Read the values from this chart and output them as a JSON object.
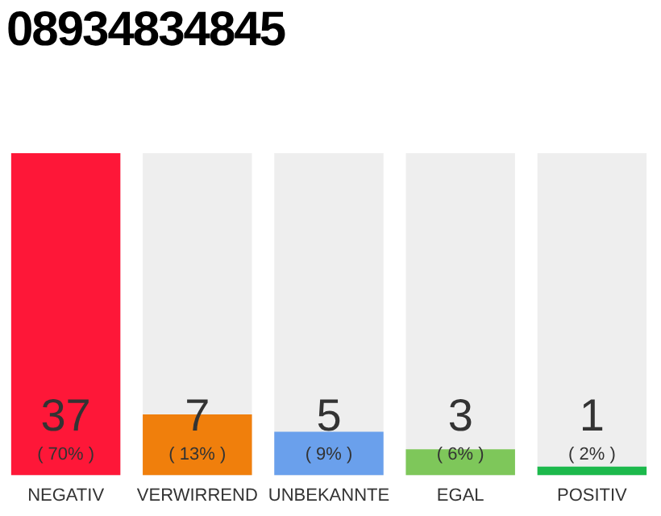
{
  "chart_data": {
    "type": "bar",
    "title": "08934834845",
    "categories": [
      "NEGATIV",
      "VERWIRREND",
      "UNBEKANNTE",
      "EGAL",
      "POSITIV"
    ],
    "values": [
      37,
      7,
      5,
      3,
      1
    ],
    "colors": [
      "#fe1738",
      "#f07f0c",
      "#6aa0ec",
      "#7ec75a",
      "#1cb94c"
    ],
    "data_labels": true,
    "annotations": [
      "( 70% )",
      "( 13% )",
      "( 9% )",
      "( 6% )",
      "( 2% )"
    ],
    "grid": false,
    "legend": false
  }
}
